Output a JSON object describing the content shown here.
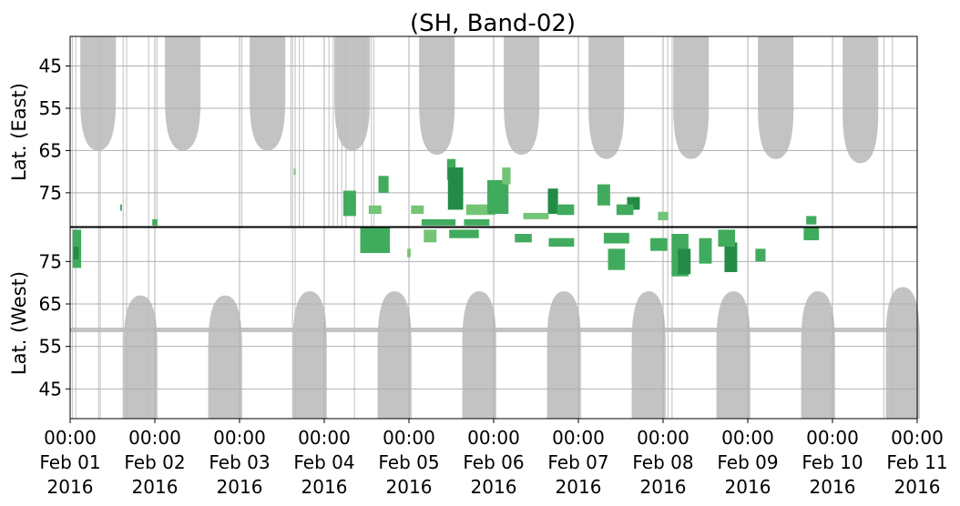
{
  "chart_data": {
    "type": "heatmap",
    "title": "(SH, Band-02)",
    "panels": [
      {
        "name": "east",
        "ylabel": "Lat. (East)",
        "yticks": [
          45,
          55,
          65,
          75
        ],
        "ylim": [
          38,
          83
        ],
        "direction": "down"
      },
      {
        "name": "west",
        "ylabel": "Lat. (West)",
        "yticks": [
          75,
          65,
          55,
          45
        ],
        "ylim": [
          83,
          38
        ],
        "direction": "up"
      }
    ],
    "xlim_days": [
      0,
      10
    ],
    "xticks": [
      {
        "day": 0,
        "time": "00:00",
        "date": "Feb 01",
        "year": "2016"
      },
      {
        "day": 1,
        "time": "00:00",
        "date": "Feb 02",
        "year": "2016"
      },
      {
        "day": 2,
        "time": "00:00",
        "date": "Feb 03",
        "year": "2016"
      },
      {
        "day": 3,
        "time": "00:00",
        "date": "Feb 04",
        "year": "2016"
      },
      {
        "day": 4,
        "time": "00:00",
        "date": "Feb 05",
        "year": "2016"
      },
      {
        "day": 5,
        "time": "00:00",
        "date": "Feb 06",
        "year": "2016"
      },
      {
        "day": 6,
        "time": "00:00",
        "date": "Feb 07",
        "year": "2016"
      },
      {
        "day": 7,
        "time": "00:00",
        "date": "Feb 08",
        "year": "2016"
      },
      {
        "day": 8,
        "time": "00:00",
        "date": "Feb 09",
        "year": "2016"
      },
      {
        "day": 9,
        "time": "00:00",
        "date": "Feb 10",
        "year": "2016"
      },
      {
        "day": 10,
        "time": "00:00",
        "date": "Feb 11",
        "year": "2016"
      }
    ],
    "grid": true,
    "colors": {
      "no_data": "#bdbdbd",
      "low": "#74c476",
      "mid": "#41ab5d",
      "high": "#238b45",
      "grid": "#b0b0b0"
    },
    "no_data_lobes": {
      "east_centers_day": [
        0.33,
        1.33,
        2.33,
        3.33,
        4.33,
        5.33,
        6.33,
        7.33,
        8.33,
        9.33
      ],
      "east_edge_lat": [
        65,
        65,
        65,
        65,
        66,
        66,
        67,
        67,
        67,
        68
      ],
      "west_centers_day": [
        0.83,
        1.83,
        2.83,
        3.83,
        4.83,
        5.83,
        6.83,
        7.83,
        8.83,
        9.83
      ],
      "west_edge_lat": [
        67,
        67,
        68,
        68,
        68,
        68,
        68,
        68,
        68,
        69
      ],
      "west_band_lat": 59
    },
    "events": [
      {
        "panel": "east",
        "day": 2.65,
        "lat": 70,
        "w": 0.02,
        "h": 1.5,
        "level": "low"
      },
      {
        "panel": "east",
        "day": 3.3,
        "lat": 77.5,
        "w": 0.15,
        "h": 6,
        "level": "mid"
      },
      {
        "panel": "east",
        "day": 3.7,
        "lat": 73,
        "w": 0.12,
        "h": 4,
        "level": "mid"
      },
      {
        "panel": "east",
        "day": 3.6,
        "lat": 79,
        "w": 0.15,
        "h": 2,
        "level": "low"
      },
      {
        "panel": "east",
        "day": 4.5,
        "lat": 69.5,
        "w": 0.1,
        "h": 5,
        "level": "mid"
      },
      {
        "panel": "east",
        "day": 4.55,
        "lat": 74,
        "w": 0.18,
        "h": 10,
        "level": "high"
      },
      {
        "panel": "east",
        "day": 4.85,
        "lat": 79,
        "w": 0.35,
        "h": 2.5,
        "level": "low"
      },
      {
        "panel": "east",
        "day": 5.05,
        "lat": 76,
        "w": 0.25,
        "h": 8,
        "level": "mid"
      },
      {
        "panel": "east",
        "day": 5.15,
        "lat": 71,
        "w": 0.1,
        "h": 4,
        "level": "low"
      },
      {
        "panel": "east",
        "day": 5.7,
        "lat": 77,
        "w": 0.12,
        "h": 6,
        "level": "high"
      },
      {
        "panel": "east",
        "day": 5.85,
        "lat": 79,
        "w": 0.2,
        "h": 2.5,
        "level": "mid"
      },
      {
        "panel": "east",
        "day": 6.3,
        "lat": 75.5,
        "w": 0.15,
        "h": 5,
        "level": "mid"
      },
      {
        "panel": "east",
        "day": 6.65,
        "lat": 77.5,
        "w": 0.15,
        "h": 3,
        "level": "high"
      },
      {
        "panel": "east",
        "day": 6.55,
        "lat": 79,
        "w": 0.2,
        "h": 2.5,
        "level": "mid"
      },
      {
        "panel": "east",
        "day": 5.5,
        "lat": 80.5,
        "w": 0.3,
        "h": 1.5,
        "level": "low"
      },
      {
        "panel": "east",
        "day": 4.1,
        "lat": 79,
        "w": 0.15,
        "h": 2,
        "level": "low"
      },
      {
        "panel": "east",
        "day": 4.35,
        "lat": 82,
        "w": 0.4,
        "h": 1.5,
        "level": "mid"
      },
      {
        "panel": "east",
        "day": 4.8,
        "lat": 82,
        "w": 0.3,
        "h": 1.5,
        "level": "mid"
      },
      {
        "panel": "east",
        "day": 7.0,
        "lat": 80.5,
        "w": 0.12,
        "h": 2,
        "level": "low"
      },
      {
        "panel": "east",
        "day": 8.75,
        "lat": 81.5,
        "w": 0.12,
        "h": 2,
        "level": "mid"
      },
      {
        "panel": "east",
        "day": 1.0,
        "lat": 82,
        "w": 0.06,
        "h": 1.5,
        "level": "mid"
      },
      {
        "panel": "east",
        "day": 0.6,
        "lat": 78.5,
        "w": 0.02,
        "h": 1.5,
        "level": "mid"
      },
      {
        "panel": "west",
        "day": 0.08,
        "lat": 78,
        "w": 0.1,
        "h": 9,
        "level": "mid"
      },
      {
        "panel": "west",
        "day": 0.07,
        "lat": 77,
        "w": 0.06,
        "h": 3,
        "level": "high"
      },
      {
        "panel": "west",
        "day": 3.6,
        "lat": 80,
        "w": 0.35,
        "h": 6,
        "level": "mid"
      },
      {
        "panel": "west",
        "day": 4.25,
        "lat": 81,
        "w": 0.15,
        "h": 3,
        "level": "low"
      },
      {
        "panel": "west",
        "day": 4.65,
        "lat": 81.5,
        "w": 0.35,
        "h": 2,
        "level": "mid"
      },
      {
        "panel": "west",
        "day": 5.35,
        "lat": 80.5,
        "w": 0.2,
        "h": 2,
        "level": "mid"
      },
      {
        "panel": "west",
        "day": 5.8,
        "lat": 79.5,
        "w": 0.3,
        "h": 2,
        "level": "mid"
      },
      {
        "panel": "west",
        "day": 6.45,
        "lat": 80.5,
        "w": 0.3,
        "h": 2.5,
        "level": "mid"
      },
      {
        "panel": "west",
        "day": 6.45,
        "lat": 75.5,
        "w": 0.2,
        "h": 5,
        "level": "mid"
      },
      {
        "panel": "west",
        "day": 6.95,
        "lat": 79,
        "w": 0.2,
        "h": 3,
        "level": "mid"
      },
      {
        "panel": "west",
        "day": 7.2,
        "lat": 76.5,
        "w": 0.2,
        "h": 10,
        "level": "mid"
      },
      {
        "panel": "west",
        "day": 7.25,
        "lat": 75,
        "w": 0.15,
        "h": 6,
        "level": "high"
      },
      {
        "panel": "west",
        "day": 7.5,
        "lat": 77.5,
        "w": 0.15,
        "h": 6,
        "level": "mid"
      },
      {
        "panel": "west",
        "day": 7.8,
        "lat": 76,
        "w": 0.15,
        "h": 7,
        "level": "high"
      },
      {
        "panel": "west",
        "day": 7.75,
        "lat": 80.5,
        "w": 0.2,
        "h": 4,
        "level": "mid"
      },
      {
        "panel": "west",
        "day": 8.15,
        "lat": 76.5,
        "w": 0.12,
        "h": 3,
        "level": "mid"
      },
      {
        "panel": "west",
        "day": 8.75,
        "lat": 81.5,
        "w": 0.18,
        "h": 3,
        "level": "mid"
      },
      {
        "panel": "west",
        "day": 4.0,
        "lat": 77,
        "w": 0.04,
        "h": 2,
        "level": "low"
      }
    ]
  }
}
